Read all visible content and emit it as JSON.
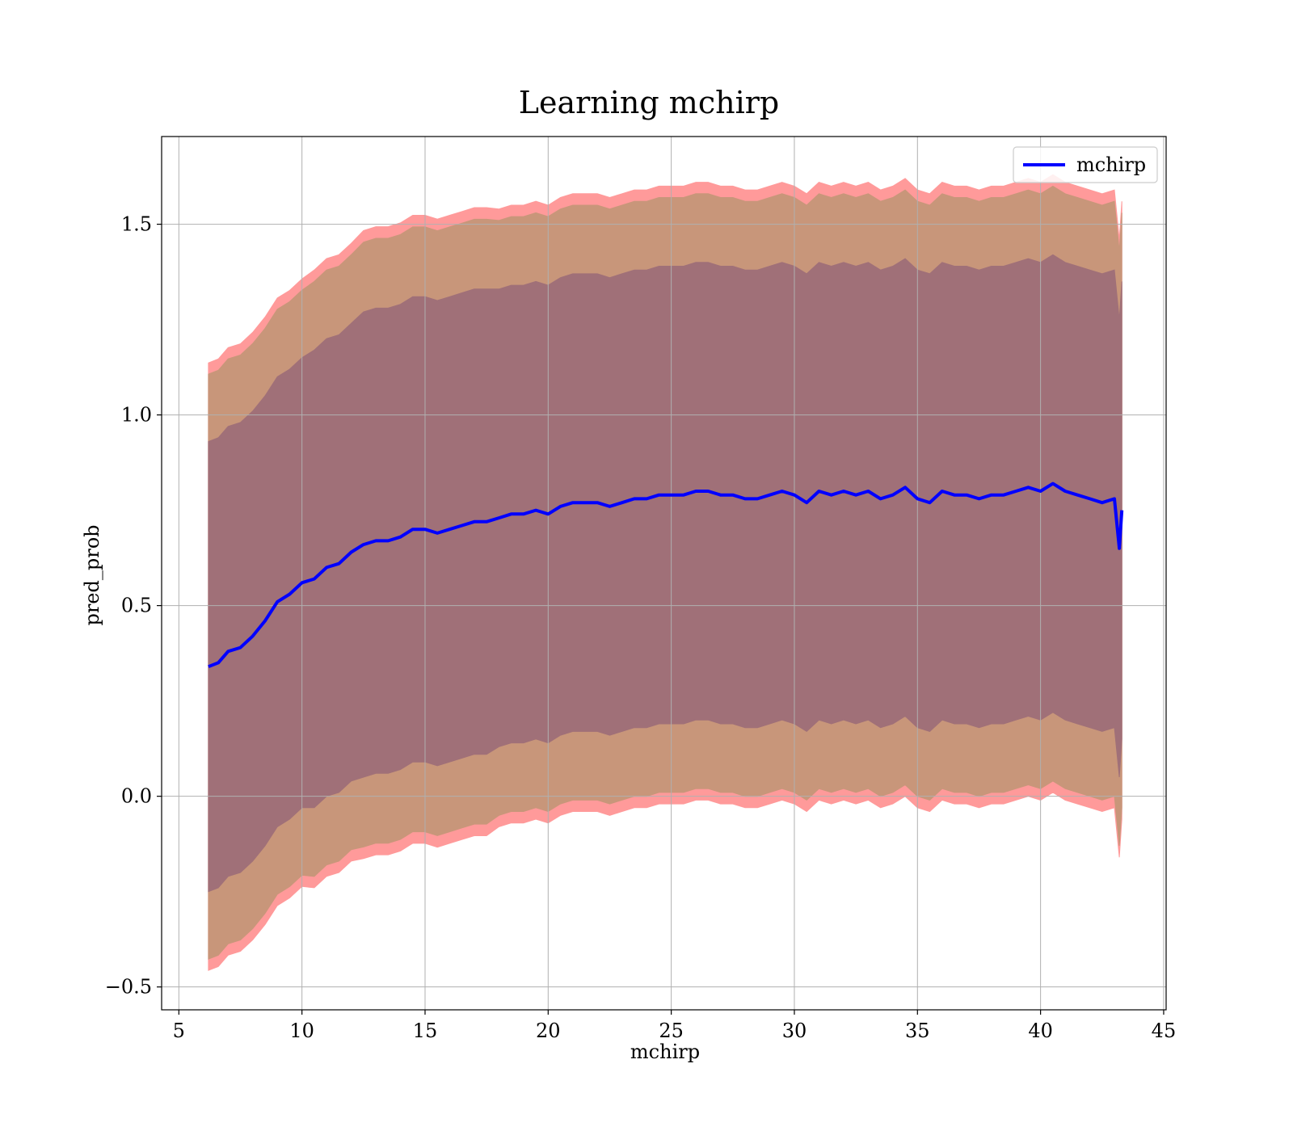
{
  "chart_data": {
    "type": "line",
    "title": "Learning mchirp",
    "xlabel": "mchirp",
    "ylabel": "pred_prob",
    "xlim": [
      4.3,
      45.1
    ],
    "ylim": [
      -0.56,
      1.73
    ],
    "xticks": [
      5,
      10,
      15,
      20,
      25,
      30,
      35,
      40,
      45
    ],
    "xtick_labels": [
      "5",
      "10",
      "15",
      "20",
      "25",
      "30",
      "35",
      "40",
      "45"
    ],
    "yticks": [
      -0.5,
      0.0,
      0.5,
      1.0,
      1.5
    ],
    "ytick_labels": [
      "−0.5",
      "0.0",
      "0.5",
      "1.0",
      "1.5"
    ],
    "grid": true,
    "legend": {
      "entries": [
        "mchirp"
      ],
      "position": "top-right"
    },
    "colors": {
      "line": "#0000ff",
      "band_outer": "#ff9a9a",
      "band_middle": "#c8967a",
      "band_inner": "#a07078",
      "grid": "#b0b0b0"
    },
    "series": [
      {
        "name": "mchirp",
        "x": [
          6.2,
          6.6,
          7.0,
          7.5,
          8.0,
          8.5,
          9.0,
          9.5,
          10.0,
          10.5,
          11.0,
          11.5,
          12.0,
          12.5,
          13.0,
          13.5,
          14.0,
          14.5,
          15.0,
          15.5,
          16.0,
          16.5,
          17.0,
          17.5,
          18.0,
          18.5,
          19.0,
          19.5,
          20.0,
          20.5,
          21.0,
          21.5,
          22.0,
          22.5,
          23.0,
          23.5,
          24.0,
          24.5,
          25.0,
          25.5,
          26.0,
          26.5,
          27.0,
          27.5,
          28.0,
          28.5,
          29.0,
          29.5,
          30.0,
          30.5,
          31.0,
          31.5,
          32.0,
          32.5,
          33.0,
          33.5,
          34.0,
          34.5,
          35.0,
          35.5,
          36.0,
          36.5,
          37.0,
          37.5,
          38.0,
          38.5,
          39.0,
          39.5,
          40.0,
          40.5,
          41.0,
          41.5,
          42.0,
          42.5,
          43.0,
          43.2,
          43.3
        ],
        "mean": [
          0.34,
          0.35,
          0.38,
          0.39,
          0.42,
          0.46,
          0.51,
          0.53,
          0.56,
          0.57,
          0.6,
          0.61,
          0.64,
          0.66,
          0.67,
          0.67,
          0.68,
          0.7,
          0.7,
          0.69,
          0.7,
          0.71,
          0.72,
          0.72,
          0.73,
          0.74,
          0.74,
          0.75,
          0.74,
          0.76,
          0.77,
          0.77,
          0.77,
          0.76,
          0.77,
          0.78,
          0.78,
          0.79,
          0.79,
          0.79,
          0.8,
          0.8,
          0.79,
          0.79,
          0.78,
          0.78,
          0.79,
          0.8,
          0.79,
          0.77,
          0.8,
          0.79,
          0.8,
          0.79,
          0.8,
          0.78,
          0.79,
          0.81,
          0.78,
          0.77,
          0.8,
          0.79,
          0.79,
          0.78,
          0.79,
          0.79,
          0.8,
          0.81,
          0.8,
          0.82,
          0.8,
          0.79,
          0.78,
          0.77,
          0.78,
          0.65,
          0.75
        ],
        "std": [
          0.59,
          0.59,
          0.59,
          0.59,
          0.59,
          0.59,
          0.59,
          0.59,
          0.59,
          0.6,
          0.6,
          0.6,
          0.6,
          0.61,
          0.61,
          0.61,
          0.61,
          0.61,
          0.61,
          0.61,
          0.61,
          0.61,
          0.61,
          0.61,
          0.6,
          0.6,
          0.6,
          0.6,
          0.6,
          0.6,
          0.6,
          0.6,
          0.6,
          0.6,
          0.6,
          0.6,
          0.6,
          0.6,
          0.6,
          0.6,
          0.6,
          0.6,
          0.6,
          0.6,
          0.6,
          0.6,
          0.6,
          0.6,
          0.6,
          0.6,
          0.6,
          0.6,
          0.6,
          0.6,
          0.6,
          0.6,
          0.6,
          0.6,
          0.6,
          0.6,
          0.6,
          0.6,
          0.6,
          0.6,
          0.6,
          0.6,
          0.6,
          0.6,
          0.6,
          0.6,
          0.6,
          0.6,
          0.6,
          0.6,
          0.6,
          0.6,
          0.6
        ]
      }
    ],
    "bands": [
      {
        "sigma": 1,
        "color": "band_inner"
      },
      {
        "sigma": 1.3,
        "color": "band_middle"
      },
      {
        "sigma": 1.35,
        "color": "band_outer"
      }
    ]
  }
}
